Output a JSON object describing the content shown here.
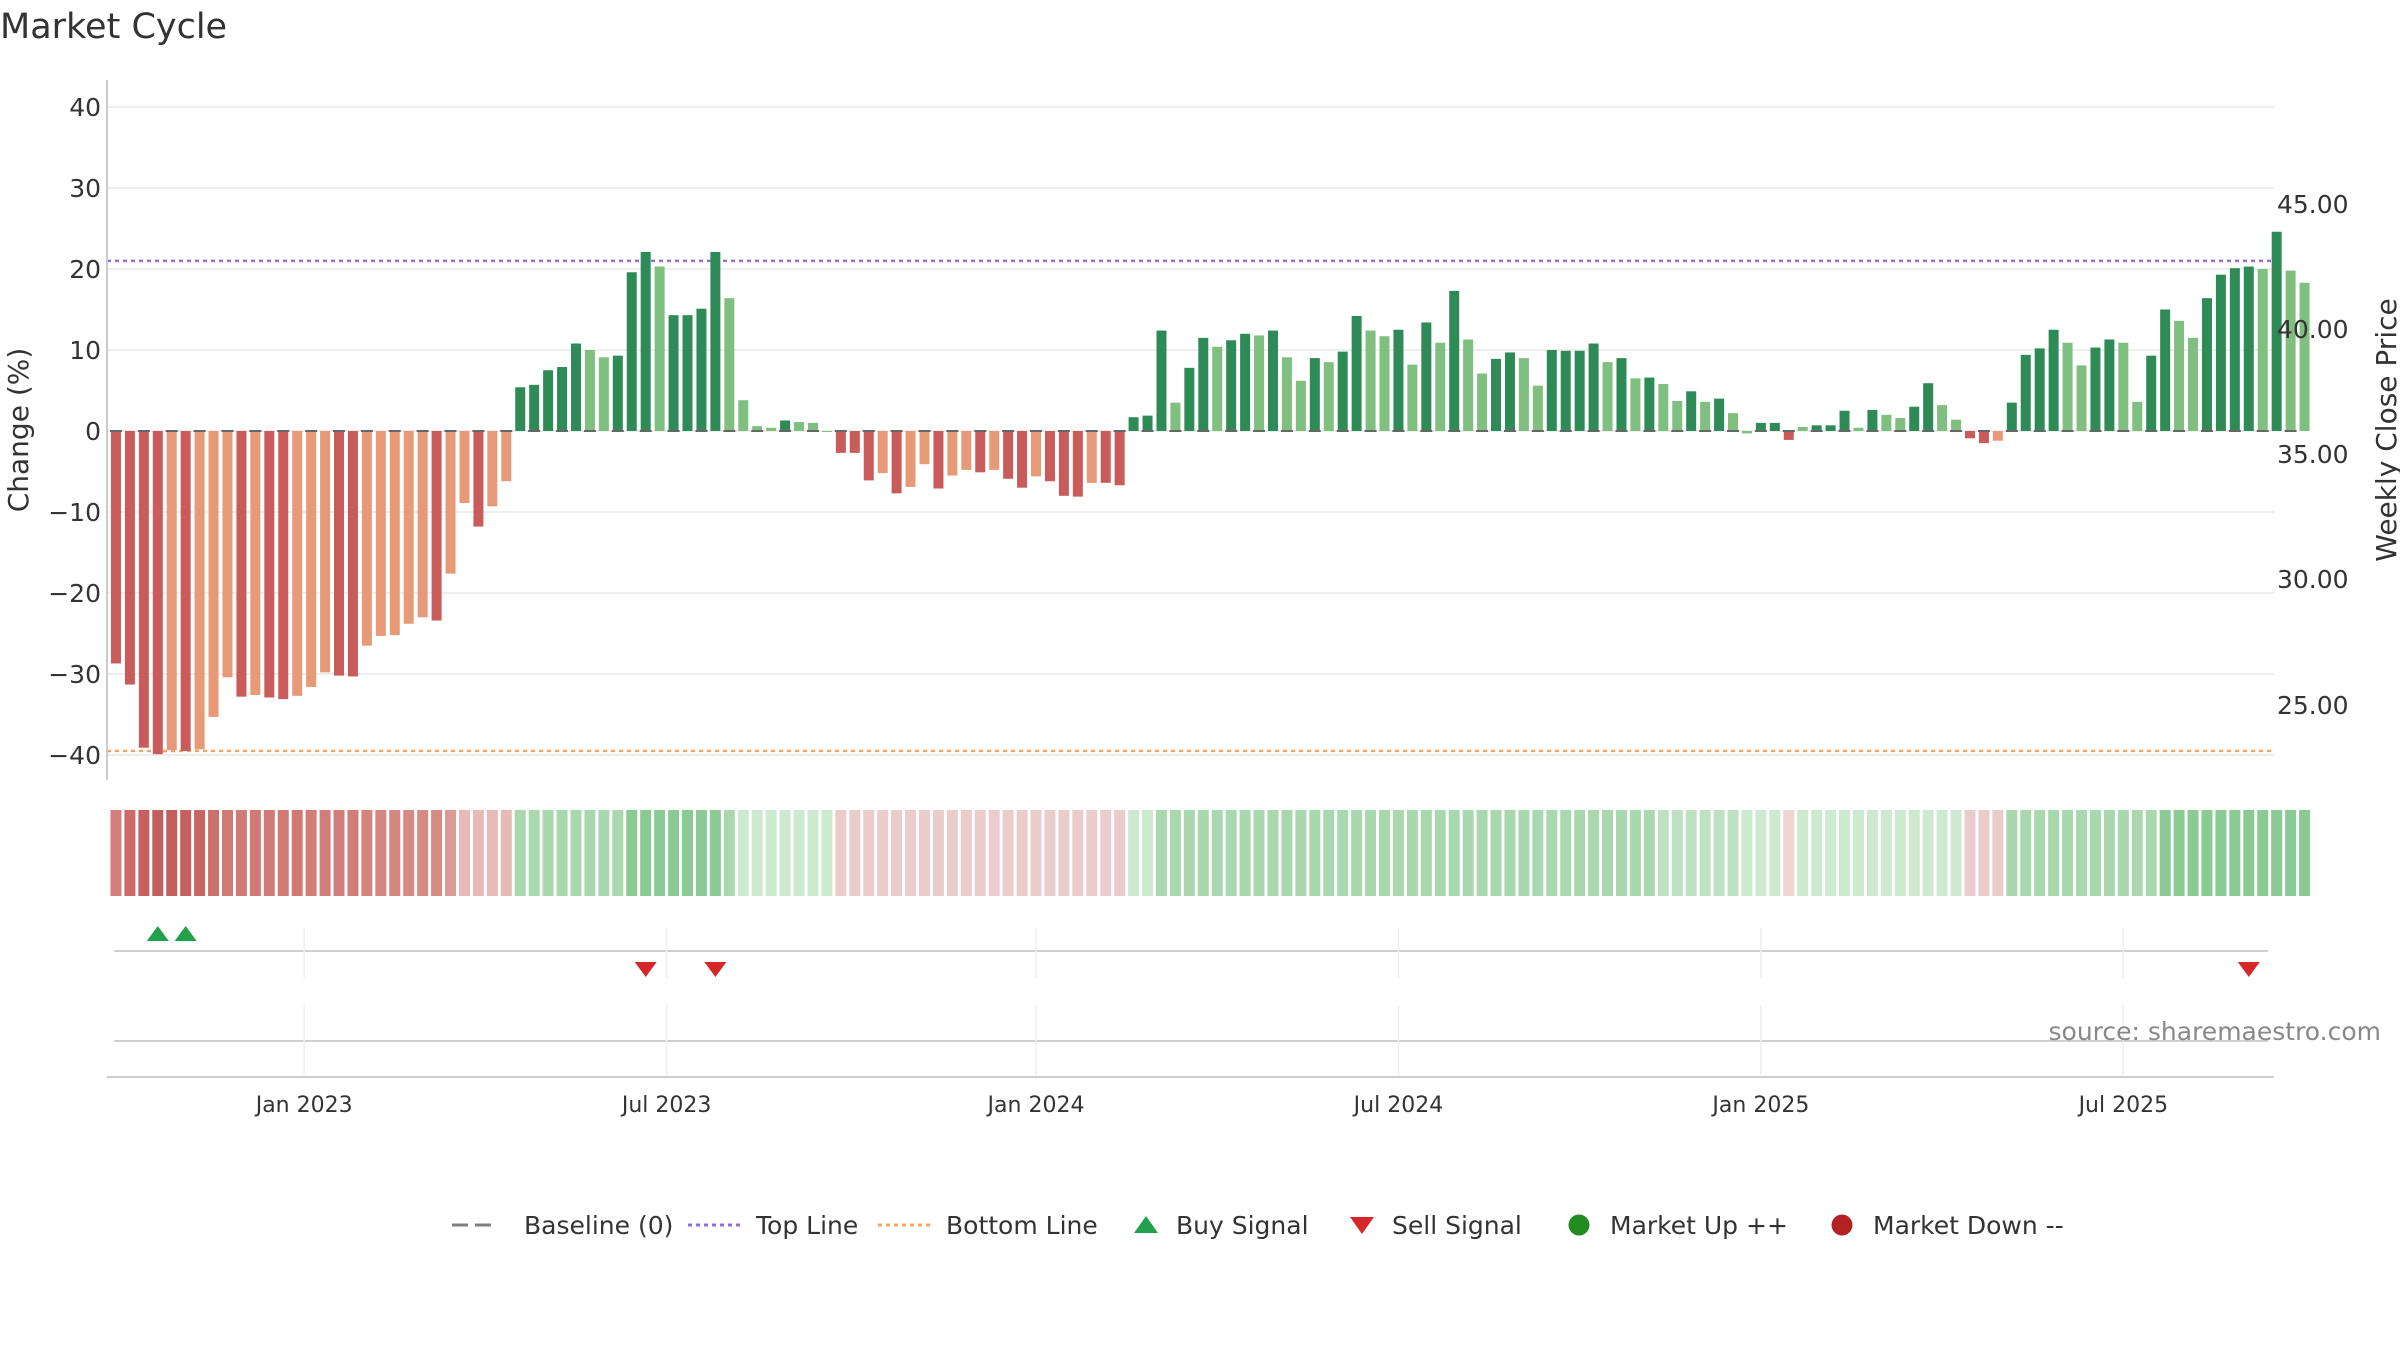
{
  "chart_data": {
    "type": "bar",
    "title": "Market Cycle",
    "ylabel_left": "Change (%)",
    "ylabel_right": "Weekly Close Price",
    "ylim": [
      -43,
      43
    ],
    "yticks": [
      40,
      30,
      20,
      10,
      0,
      -10,
      -20,
      -30,
      -40
    ],
    "ytick_labels": [
      "40",
      "30",
      "20",
      "10",
      "0",
      "−10",
      "−20",
      "−30",
      "−40"
    ],
    "y2ticks": [
      "45.00",
      "40.00",
      "35.00",
      "30.00",
      "25.00"
    ],
    "xtick_labels": [
      "Jan 2023",
      "Jul 2023",
      "Jan 2024",
      "Jul 2024",
      "Jan 2025",
      "Jul 2025"
    ],
    "xtick_weeks": [
      14,
      40,
      66.5,
      92.5,
      118.5,
      144.5
    ],
    "top_line": 21,
    "bottom_line": -39.5,
    "values": [
      -28.7,
      -31.3,
      -39.1,
      -39.9,
      -39.4,
      -39.5,
      -39.3,
      -35.3,
      -30.4,
      -32.8,
      -32.6,
      -32.9,
      -33.1,
      -32.7,
      -31.6,
      -29.8,
      -30.2,
      -30.3,
      -26.5,
      -25.3,
      -25.2,
      -23.8,
      -23,
      -23.4,
      -17.6,
      -8.9,
      -11.8,
      -9.3,
      -6.2,
      5.4,
      5.7,
      7.5,
      7.9,
      10.8,
      10,
      9.1,
      9.3,
      19.6,
      22.1,
      20.3,
      14.3,
      14.3,
      15.1,
      22.1,
      16.4,
      3.8,
      0.6,
      0.4,
      1.3,
      1.1,
      1,
      0,
      -2.7,
      -2.7,
      -6.1,
      -5.2,
      -7.7,
      -6.9,
      -4.1,
      -7.1,
      -5.5,
      -4.8,
      -5.1,
      -4.8,
      -5.9,
      -7,
      -5.6,
      -6.2,
      -8,
      -8.1,
      -6.4,
      -6.4,
      -6.7,
      1.7,
      1.9,
      12.4,
      3.5,
      7.8,
      11.5,
      10.4,
      11.2,
      12,
      11.8,
      12.4,
      9.1,
      6.2,
      9,
      8.5,
      9.8,
      14.2,
      12.4,
      11.7,
      12.5,
      8.2,
      13.4,
      10.9,
      17.3,
      11.3,
      7.1,
      8.9,
      9.7,
      9,
      5.6,
      10,
      9.9,
      9.9,
      10.8,
      8.5,
      9,
      6.5,
      6.6,
      5.8,
      3.7,
      4.9,
      3.6,
      4,
      2.2,
      -0.3,
      1,
      1,
      -1.1,
      0.5,
      0.7,
      0.7,
      2.5,
      0.4,
      2.6,
      2,
      1.6,
      3,
      5.9,
      3.2,
      1.4,
      -0.9,
      -1.5,
      -1.2,
      3.5,
      9.4,
      10.2,
      12.5,
      10.9,
      8.1,
      10.3,
      11.3,
      10.9,
      3.6,
      9.3,
      15,
      13.6,
      11.5,
      16.4,
      19.3,
      20.1,
      20.3,
      20,
      24.6,
      19.8,
      18.3
    ],
    "colors": [
      "#c95b5b",
      "#c95b5b",
      "#c95b5b",
      "#c95b5b",
      "#e69a78",
      "#c95b5b",
      "#e69a78",
      "#e69a78",
      "#e69a78",
      "#c95b5b",
      "#e69a78",
      "#c95b5b",
      "#c95b5b",
      "#e69a78",
      "#e69a78",
      "#e69a78",
      "#c95b5b",
      "#c95b5b",
      "#e69a78",
      "#e69a78",
      "#e69a78",
      "#e69a78",
      "#e69a78",
      "#c95b5b",
      "#e69a78",
      "#e69a78",
      "#c95b5b",
      "#e69a78",
      "#e69a78",
      "#2e8b57",
      "#2e8b57",
      "#2e8b57",
      "#2e8b57",
      "#2e8b57",
      "#7fbf7f",
      "#7fbf7f",
      "#2e8b57",
      "#2e8b57",
      "#2e8b57",
      "#7fbf7f",
      "#2e8b57",
      "#2e8b57",
      "#2e8b57",
      "#2e8b57",
      "#7fbf7f",
      "#7fbf7f",
      "#7fbf7f",
      "#7fbf7f",
      "#2e8b57",
      "#7fbf7f",
      "#7fbf7f",
      "#7fbf7f",
      "#c95b5b",
      "#c95b5b",
      "#c95b5b",
      "#e69a78",
      "#c95b5b",
      "#e69a78",
      "#e69a78",
      "#c95b5b",
      "#e69a78",
      "#e69a78",
      "#c95b5b",
      "#e69a78",
      "#c95b5b",
      "#c95b5b",
      "#e69a78",
      "#c95b5b",
      "#c95b5b",
      "#c95b5b",
      "#e69a78",
      "#c95b5b",
      "#c95b5b",
      "#2e8b57",
      "#2e8b57",
      "#2e8b57",
      "#7fbf7f",
      "#2e8b57",
      "#2e8b57",
      "#7fbf7f",
      "#2e8b57",
      "#2e8b57",
      "#7fbf7f",
      "#2e8b57",
      "#7fbf7f",
      "#7fbf7f",
      "#2e8b57",
      "#7fbf7f",
      "#2e8b57",
      "#2e8b57",
      "#7fbf7f",
      "#7fbf7f",
      "#2e8b57",
      "#7fbf7f",
      "#2e8b57",
      "#7fbf7f",
      "#2e8b57",
      "#7fbf7f",
      "#7fbf7f",
      "#2e8b57",
      "#2e8b57",
      "#7fbf7f",
      "#7fbf7f",
      "#2e8b57",
      "#2e8b57",
      "#2e8b57",
      "#2e8b57",
      "#7fbf7f",
      "#2e8b57",
      "#7fbf7f",
      "#2e8b57",
      "#7fbf7f",
      "#7fbf7f",
      "#2e8b57",
      "#7fbf7f",
      "#2e8b57",
      "#7fbf7f",
      "#7fbf7f",
      "#2e8b57",
      "#2e8b57",
      "#c95b5b",
      "#7fbf7f",
      "#2e8b57",
      "#2e8b57",
      "#2e8b57",
      "#7fbf7f",
      "#2e8b57",
      "#7fbf7f",
      "#7fbf7f",
      "#2e8b57",
      "#2e8b57",
      "#7fbf7f",
      "#7fbf7f",
      "#c95b5b",
      "#c95b5b",
      "#e69a78",
      "#2e8b57",
      "#2e8b57",
      "#2e8b57",
      "#2e8b57",
      "#7fbf7f",
      "#7fbf7f",
      "#2e8b57",
      "#2e8b57",
      "#7fbf7f",
      "#7fbf7f",
      "#2e8b57",
      "#2e8b57",
      "#7fbf7f",
      "#7fbf7f",
      "#2e8b57",
      "#2e8b57",
      "#2e8b57",
      "#2e8b57",
      "#7fbf7f",
      "#2e8b57",
      "#7fbf7f",
      "#7fbf7f"
    ],
    "heat_colors": [
      "#d37f7b",
      "#cb6a66",
      "#c5625f",
      "#c25e5b",
      "#c25e5b",
      "#c4605d",
      "#c76562",
      "#cc706c",
      "#d17a75",
      "#d17a75",
      "#d17a75",
      "#d17a75",
      "#d17a75",
      "#d17a75",
      "#d27d78",
      "#d27d78",
      "#d27d78",
      "#d27d78",
      "#d5837e",
      "#d58681",
      "#d58681",
      "#d78a84",
      "#d78a84",
      "#d78a84",
      "#dc9a94",
      "#e6bab5",
      "#e6bab5",
      "#e6bab5",
      "#e6bab5",
      "#a9d8af",
      "#a9d8af",
      "#a9d8af",
      "#a9d8af",
      "#a9d8af",
      "#a9d8af",
      "#a9d8af",
      "#a9d8af",
      "#8cca93",
      "#8cca93",
      "#8cca93",
      "#8cca93",
      "#8cca93",
      "#8cca93",
      "#8cca93",
      "#a9d8af",
      "#cde9d0",
      "#cde9d0",
      "#cde9d0",
      "#cde9d0",
      "#cde9d0",
      "#cde9d0",
      "#cde9d0",
      "#eacdca",
      "#eacdca",
      "#eacdca",
      "#eacdca",
      "#eacdca",
      "#eacdca",
      "#eacdca",
      "#eacdca",
      "#eacdca",
      "#eacdca",
      "#eacdca",
      "#eacdca",
      "#eacdca",
      "#eacdca",
      "#eacdca",
      "#eacdca",
      "#eacdca",
      "#eacdca",
      "#eacdca",
      "#eacdca",
      "#eacdca",
      "#cde9d0",
      "#cde9d0",
      "#a9d8af",
      "#a9d8af",
      "#a9d8af",
      "#a9d8af",
      "#a9d8af",
      "#a9d8af",
      "#a9d8af",
      "#a9d8af",
      "#a9d8af",
      "#a9d8af",
      "#a9d8af",
      "#a9d8af",
      "#a9d8af",
      "#a9d8af",
      "#a9d8af",
      "#a9d8af",
      "#a9d8af",
      "#a9d8af",
      "#a9d8af",
      "#a9d8af",
      "#a9d8af",
      "#a9d8af",
      "#a9d8af",
      "#a9d8af",
      "#a9d8af",
      "#a9d8af",
      "#a9d8af",
      "#a9d8af",
      "#a9d8af",
      "#a9d8af",
      "#a9d8af",
      "#a9d8af",
      "#a9d8af",
      "#a9d8af",
      "#a9d8af",
      "#a9d8af",
      "#bde1c1",
      "#bde1c1",
      "#bde1c1",
      "#bde1c1",
      "#bde1c1",
      "#bde1c1",
      "#cde9d0",
      "#cde9d0",
      "#cde9d0",
      "#f0d4d2",
      "#cde9d0",
      "#cde9d0",
      "#cde9d0",
      "#cde9d0",
      "#cde9d0",
      "#cde9d0",
      "#cde9d0",
      "#cde9d0",
      "#cde9d0",
      "#cde9d0",
      "#cde9d0",
      "#cde9d0",
      "#eacdca",
      "#eacdca",
      "#eacdca",
      "#a9d8af",
      "#a9d8af",
      "#a9d8af",
      "#a9d8af",
      "#a9d8af",
      "#a9d8af",
      "#a9d8af",
      "#a9d8af",
      "#a9d8af",
      "#a9d8af",
      "#a9d8af",
      "#8cca93",
      "#8cca93",
      "#8cca93",
      "#8cca93",
      "#8cca93",
      "#8cca93",
      "#8cca93",
      "#8cca93",
      "#8cca93",
      "#8cca93",
      "#8cca93"
    ],
    "buy_signal_weeks": [
      3,
      5
    ],
    "sell_signal_weeks": [
      38,
      43,
      153
    ],
    "annotation": "source: sharemaestro.com",
    "legend_position": "bottom",
    "grid": true
  },
  "legend": [
    {
      "label": "Baseline (0)",
      "marker": "dash",
      "color": "#808080"
    },
    {
      "label": "Top Line",
      "marker": "dotted-line",
      "color": "#9370db"
    },
    {
      "label": "Bottom Line",
      "marker": "dotted-line",
      "color": "#f4a460"
    },
    {
      "label": "Buy Signal",
      "marker": "triangle-up",
      "color": "#22a04a"
    },
    {
      "label": "Sell Signal",
      "marker": "triangle-down",
      "color": "#d62728"
    },
    {
      "label": "Market Up ++",
      "marker": "circle",
      "color": "#228b22"
    },
    {
      "label": "Market Down --",
      "marker": "circle",
      "color": "#b22222"
    }
  ]
}
